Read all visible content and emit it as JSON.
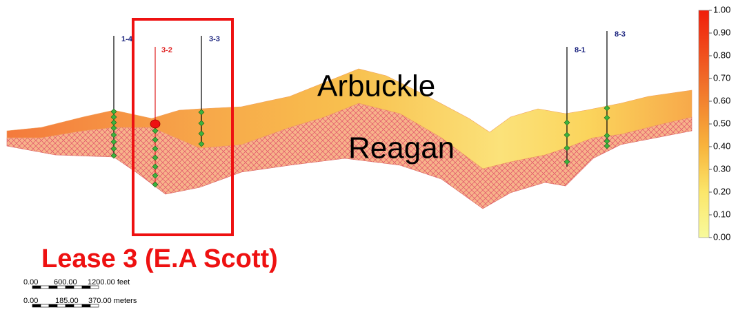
{
  "wells": [
    {
      "label": "1-4"
    },
    {
      "label": "3-2"
    },
    {
      "label": "3-3"
    },
    {
      "label": "8-1"
    },
    {
      "label": "8-3"
    }
  ],
  "formations": [
    "Arbuckle",
    "Reagan"
  ],
  "lease_label": "Lease 3 (E.A Scott)",
  "scale_bar": {
    "feet": [
      "0.00",
      "600.00",
      "1200.00 feet"
    ],
    "meters": [
      "0.00",
      "185.00",
      "370.00 meters"
    ]
  },
  "colorbar": {
    "ticks": [
      {
        "value": 1,
        "label": "1.00"
      },
      {
        "value": 0.9,
        "label": "0.90"
      },
      {
        "value": 0.8,
        "label": "0.80"
      },
      {
        "value": 0.7,
        "label": "0.70"
      },
      {
        "value": 0.6,
        "label": "0.60"
      },
      {
        "value": 0.5,
        "label": "0.50"
      },
      {
        "value": 0.4,
        "label": "0.40"
      },
      {
        "value": 0.3,
        "label": "0.30"
      },
      {
        "value": 0.2,
        "label": "0.20"
      },
      {
        "value": 0.1,
        "label": "0.10"
      },
      {
        "value": 0,
        "label": "0.00"
      }
    ]
  }
}
